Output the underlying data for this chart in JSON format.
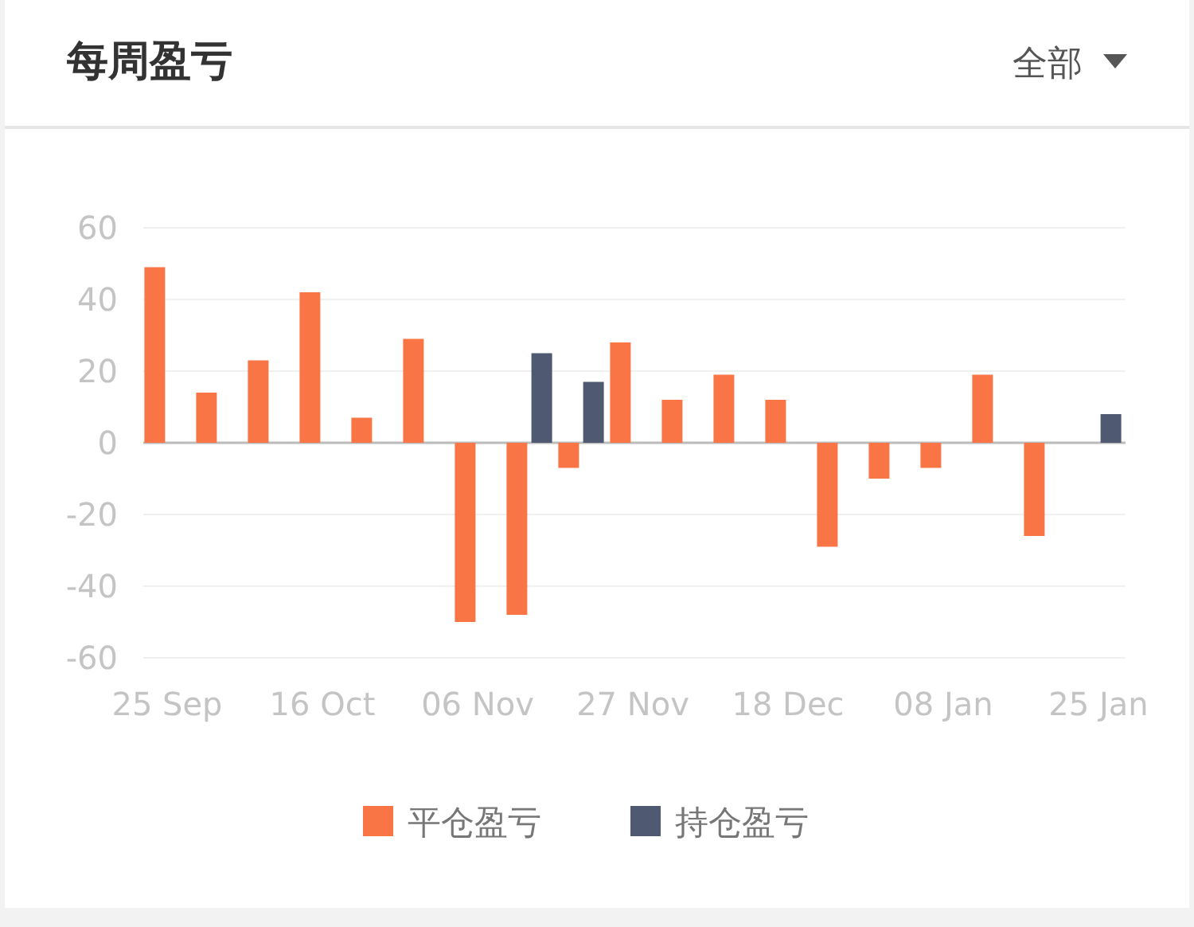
{
  "chart_data": {
    "type": "bar",
    "title": "每周盈亏",
    "annotations": [
      "全部"
    ],
    "categories": [
      "25 Sep",
      null,
      null,
      "16 Oct",
      null,
      null,
      "06 Nov",
      null,
      null,
      "27 Nov",
      null,
      null,
      "18 Dec",
      null,
      null,
      "08 Jan",
      null,
      null,
      "25 Jan"
    ],
    "series": [
      {
        "name": "平仓盈亏",
        "color": "#fa7545",
        "values": [
          49,
          14,
          23,
          42,
          7,
          29,
          -50,
          -48,
          -7,
          28,
          12,
          19,
          12,
          -29,
          -10,
          -7,
          19,
          -26,
          null
        ]
      },
      {
        "name": "持仓盈亏",
        "color": "#4f5a72",
        "values": [
          null,
          null,
          null,
          null,
          null,
          null,
          null,
          25,
          17,
          null,
          null,
          null,
          null,
          null,
          null,
          null,
          null,
          null,
          8
        ]
      }
    ],
    "ylim": [
      -60,
      60
    ],
    "yticks": [
      -60,
      -40,
      -20,
      0,
      20,
      40,
      60
    ],
    "grid": "y",
    "legend": "bottom"
  }
}
